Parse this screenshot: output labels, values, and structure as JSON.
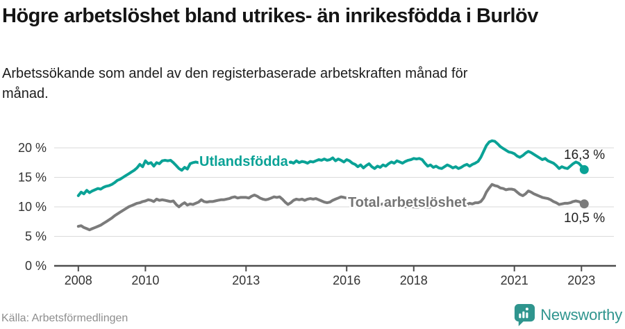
{
  "header": {
    "title": "Högre arbetslöshet bland utrikes- än inrikesfödda i Burlöv",
    "subtitle": "Arbetssökande som andel av den registerbaserade arbetskraften månad för månad."
  },
  "footer": {
    "source": "Källa: Arbetsförmedlingen",
    "brand": "Newsworthy"
  },
  "colors": {
    "series_foreign_born": "#0aa296",
    "series_total": "#7b7b7b",
    "brand_teal": "#2f958e",
    "grid": "#dadada",
    "axis": "#4d4d4d"
  },
  "chart_data": {
    "type": "line",
    "unit": "%",
    "x_monthly_range": "2008-01 to 2023-02",
    "x_tick_labels": [
      "2008",
      "2010",
      "2013",
      "2016",
      "2018",
      "2021",
      "2023"
    ],
    "y_tick_labels": [
      "0 %",
      "5 %",
      "10 %",
      "15 %",
      "20 %"
    ],
    "ylim": [
      0,
      22
    ],
    "grid": true,
    "series": [
      {
        "name": "Utlandsfödda",
        "color": "#0aa296",
        "end_label": "16,3 %",
        "end_value": 16.3,
        "values": [
          11.9,
          12.5,
          12.2,
          12.8,
          12.4,
          12.7,
          12.9,
          13.1,
          13.0,
          13.3,
          13.5,
          13.6,
          13.8,
          14.1,
          14.5,
          14.7,
          15.0,
          15.3,
          15.6,
          15.9,
          16.2,
          16.6,
          17.2,
          16.8,
          17.8,
          17.3,
          17.5,
          16.9,
          17.5,
          17.3,
          17.8,
          17.9,
          17.8,
          17.9,
          17.5,
          17.0,
          16.5,
          16.2,
          16.7,
          16.4,
          17.3,
          17.5,
          17.6,
          17.5,
          17.4,
          17.3,
          17.5,
          17.6,
          17.5,
          17.3,
          17.6,
          17.4,
          17.2,
          17.5,
          17.7,
          17.5,
          17.6,
          17.4,
          17.5,
          17.6,
          17.4,
          17.6,
          17.5,
          17.3,
          17.6,
          17.5,
          17.4,
          17.6,
          17.5,
          17.7,
          17.5,
          17.6,
          17.4,
          17.5,
          17.7,
          17.4,
          17.6,
          17.4,
          17.8,
          17.5,
          17.7,
          17.6,
          17.4,
          17.7,
          17.6,
          17.8,
          18.0,
          17.9,
          18.1,
          17.9,
          18.0,
          18.3,
          17.8,
          18.1,
          17.9,
          17.6,
          18.0,
          17.8,
          17.4,
          17.2,
          16.8,
          17.1,
          16.6,
          17.0,
          17.3,
          16.8,
          16.5,
          16.9,
          16.7,
          17.1,
          16.9,
          17.3,
          17.6,
          17.4,
          17.8,
          17.6,
          17.4,
          17.7,
          17.9,
          18.0,
          18.2,
          18.1,
          18.2,
          18.0,
          17.4,
          16.9,
          17.1,
          16.7,
          16.9,
          16.6,
          16.5,
          16.8,
          17.1,
          16.9,
          16.6,
          16.8,
          16.5,
          16.7,
          17.0,
          17.2,
          16.9,
          17.2,
          17.4,
          17.7,
          18.4,
          19.4,
          20.4,
          21.0,
          21.2,
          21.1,
          20.7,
          20.2,
          19.9,
          19.6,
          19.3,
          19.2,
          19.0,
          18.6,
          18.4,
          18.7,
          19.1,
          19.4,
          19.2,
          18.9,
          18.6,
          18.3,
          18.0,
          18.2,
          17.8,
          17.6,
          17.4,
          17.0,
          16.5,
          16.8,
          16.6,
          16.5,
          16.9,
          17.3,
          17.6,
          17.4,
          16.9,
          16.3
        ]
      },
      {
        "name": "Total arbetslöshet",
        "color": "#7b7b7b",
        "end_label": "10,5 %",
        "end_value": 10.5,
        "values": [
          6.7,
          6.8,
          6.5,
          6.3,
          6.1,
          6.3,
          6.5,
          6.7,
          6.9,
          7.2,
          7.5,
          7.8,
          8.1,
          8.5,
          8.8,
          9.1,
          9.4,
          9.7,
          10.0,
          10.2,
          10.4,
          10.6,
          10.7,
          10.9,
          11.0,
          11.2,
          11.1,
          10.9,
          11.3,
          11.1,
          11.2,
          11.1,
          11.0,
          10.9,
          11.0,
          10.4,
          10.0,
          10.4,
          10.7,
          10.3,
          10.5,
          10.4,
          10.6,
          10.8,
          11.2,
          10.9,
          10.8,
          10.9,
          10.9,
          11.0,
          11.1,
          11.2,
          11.2,
          11.3,
          11.4,
          11.6,
          11.7,
          11.5,
          11.6,
          11.6,
          11.6,
          11.5,
          11.8,
          12.0,
          11.8,
          11.5,
          11.3,
          11.2,
          11.3,
          11.5,
          11.7,
          11.6,
          11.7,
          11.3,
          10.8,
          10.4,
          10.7,
          11.1,
          11.3,
          11.2,
          11.3,
          11.1,
          11.3,
          11.4,
          11.3,
          11.4,
          11.2,
          11.0,
          10.8,
          10.7,
          10.8,
          11.1,
          11.3,
          11.5,
          11.7,
          11.6,
          11.5,
          11.3,
          11.2,
          11.0,
          10.9,
          10.8,
          10.7,
          10.8,
          10.6,
          10.5,
          10.6,
          10.5,
          10.4,
          10.5,
          10.3,
          10.4,
          10.2,
          10.3,
          10.2,
          10.1,
          10.2,
          10.0,
          10.1,
          10.0,
          10.0,
          9.9,
          10.0,
          10.1,
          10.0,
          9.9,
          10.0,
          10.1,
          10.2,
          10.1,
          10.2,
          10.3,
          10.2,
          10.3,
          10.2,
          10.4,
          10.3,
          10.4,
          10.5,
          10.4,
          10.6,
          10.5,
          10.7,
          10.7,
          10.9,
          11.5,
          12.5,
          13.2,
          13.8,
          13.6,
          13.5,
          13.2,
          13.1,
          12.9,
          13.0,
          13.0,
          12.9,
          12.5,
          12.1,
          11.9,
          12.2,
          12.7,
          12.5,
          12.2,
          12.0,
          11.8,
          11.6,
          11.5,
          11.4,
          11.2,
          10.9,
          10.7,
          10.4,
          10.5,
          10.6,
          10.6,
          10.7,
          10.9,
          11.0,
          10.9,
          10.7,
          10.5
        ]
      }
    ]
  }
}
